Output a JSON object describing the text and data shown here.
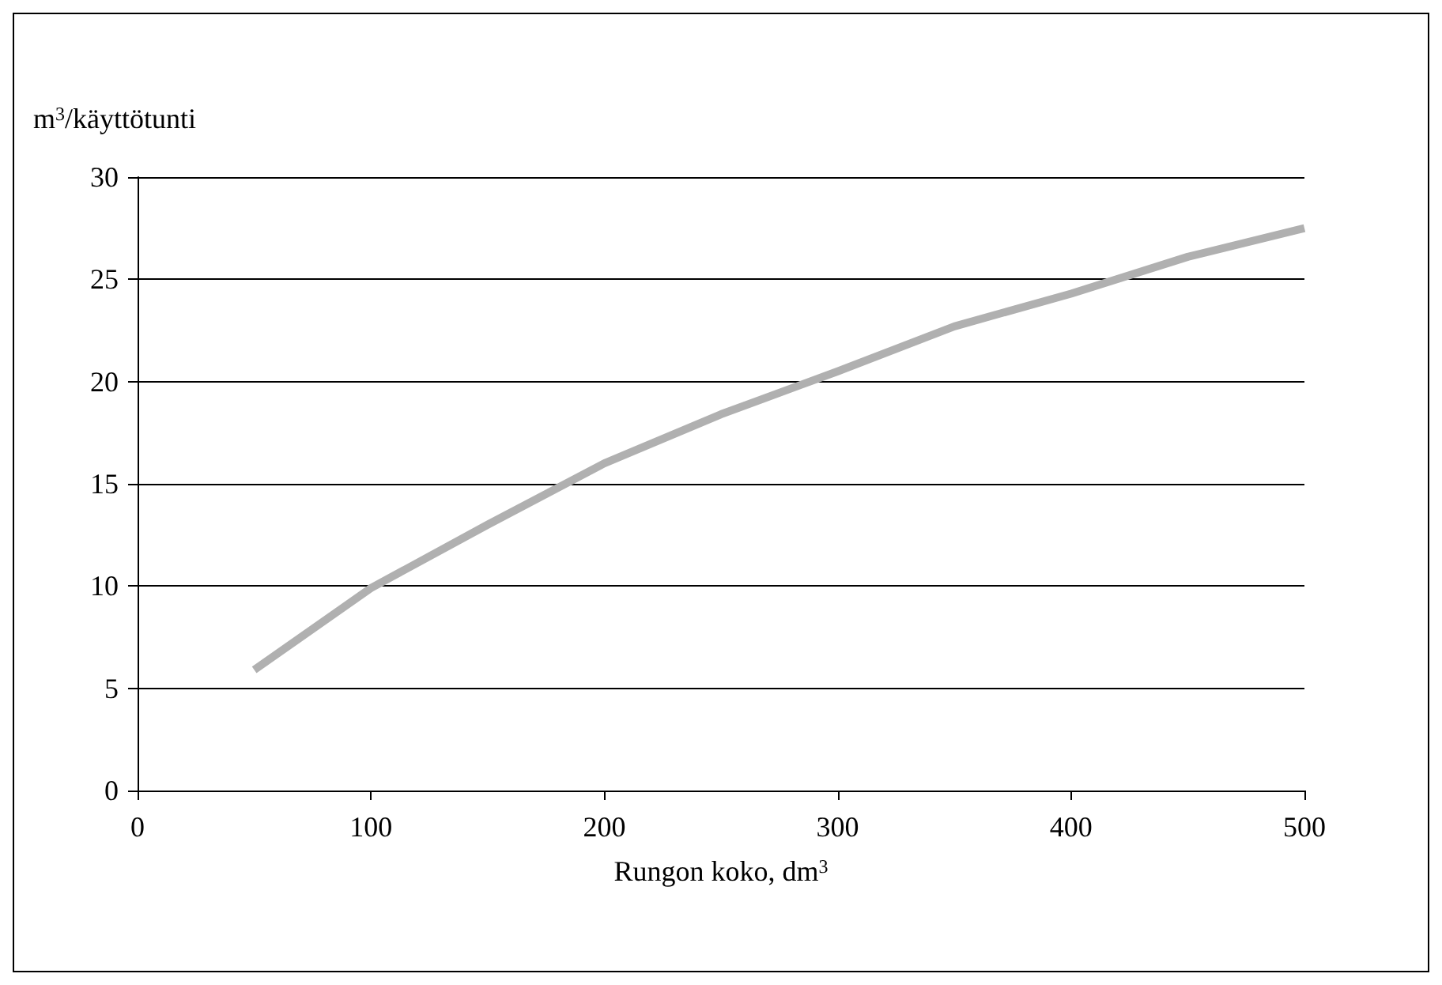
{
  "chart_data": {
    "type": "line",
    "xlabel": "Rungon koko, dm$^{3}$",
    "ylabel": "m$^{3}$/käyttötunti",
    "x": [
      50,
      100,
      150,
      200,
      250,
      300,
      350,
      400,
      450,
      500
    ],
    "series": [
      {
        "color": "#b0b0b0",
        "values": [
          5.9,
          9.9,
          13.0,
          16.0,
          18.4,
          20.5,
          22.7,
          24.3,
          26.1,
          27.5
        ]
      }
    ],
    "xlim": [
      0,
      500
    ],
    "xticks": [
      0,
      100,
      200,
      300,
      400,
      500
    ],
    "ylim": [
      0,
      30
    ],
    "yticks": [
      0,
      5,
      10,
      15,
      20,
      25,
      30
    ],
    "grid": "y",
    "marker": "none",
    "line_style": "solid"
  }
}
